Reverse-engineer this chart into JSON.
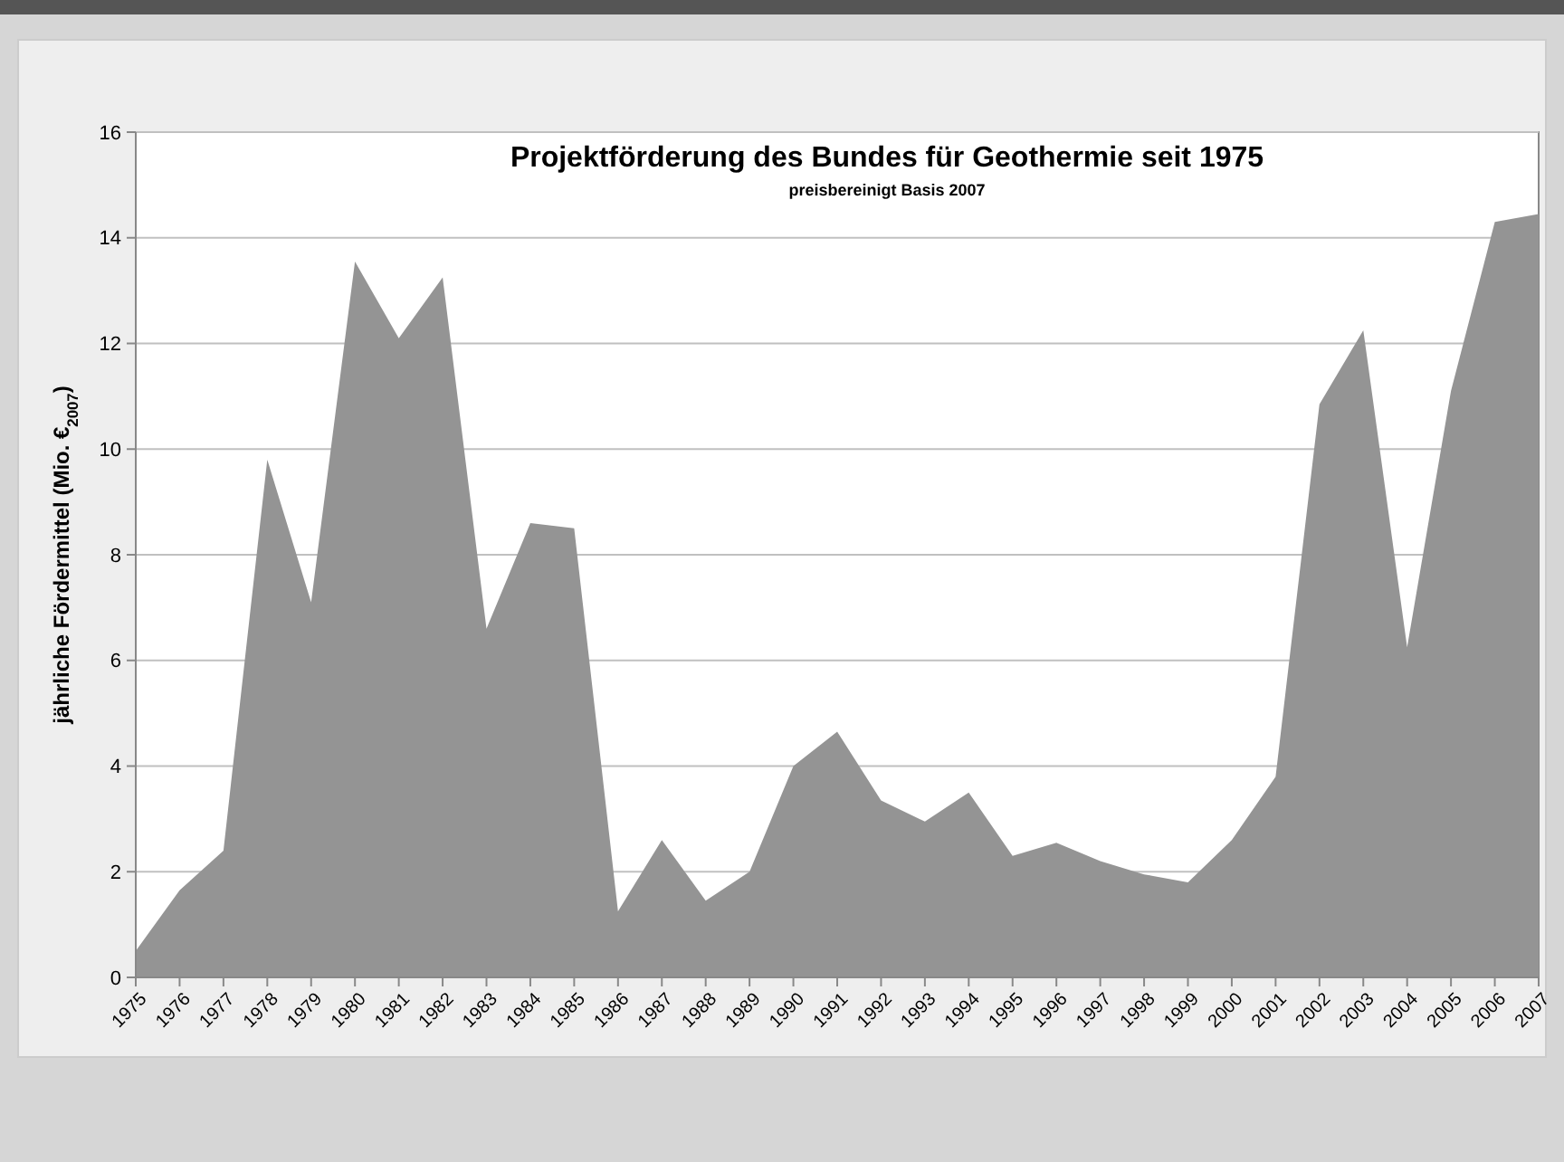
{
  "chart_data": {
    "type": "area",
    "title": "Projektförderung des Bundes für Geothermie seit 1975",
    "subtitle": "preisbereinigt Basis 2007",
    "ylabel": "jährliche Fördermittel (Mio. €$_{2007}$)",
    "categories": [
      "1975",
      "1976",
      "1977",
      "1978",
      "1979",
      "1980",
      "1981",
      "1982",
      "1983",
      "1984",
      "1985",
      "1986",
      "1987",
      "1988",
      "1989",
      "1990",
      "1991",
      "1992",
      "1993",
      "1994",
      "1995",
      "1996",
      "1997",
      "1998",
      "1999",
      "2000",
      "2001",
      "2002",
      "2003",
      "2004",
      "2005",
      "2006",
      "2007"
    ],
    "series": [
      {
        "color": "#949494",
        "values": [
          0.5,
          1.65,
          2.4,
          9.8,
          7.1,
          13.55,
          12.1,
          13.25,
          6.6,
          8.6,
          8.5,
          1.25,
          2.6,
          1.45,
          2.0,
          4.0,
          4.65,
          3.35,
          2.95,
          3.5,
          2.3,
          2.55,
          2.2,
          1.95,
          1.8,
          2.6,
          3.8,
          10.85,
          12.25,
          6.25,
          11.1,
          14.3,
          14.45
        ]
      }
    ],
    "ylim": [
      0,
      16
    ],
    "yticks": [
      0,
      2,
      4,
      6,
      8,
      10,
      12,
      14,
      16
    ],
    "grid": "y"
  }
}
